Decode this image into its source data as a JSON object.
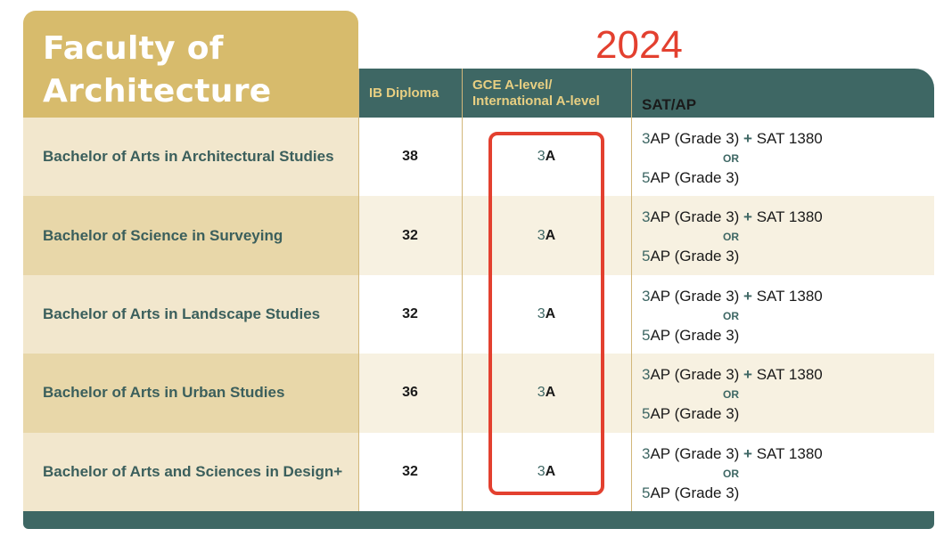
{
  "faculty_title": {
    "line1": "Faculty of",
    "line2": "Architecture"
  },
  "year": "2024",
  "headers": {
    "ib": "IB Diploma",
    "gce_line1": "GCE A-level/",
    "gce_line2": "International A-level",
    "sat": "SAT/AP"
  },
  "rows": [
    {
      "programme": "Bachelor of Arts in Architectural Studies",
      "ib": "38",
      "gce_num": "3",
      "gce_grade": "A",
      "sat": {
        "a_num": "3",
        "a_text": "AP (Grade 3)",
        "plus": "+",
        "sat_text": "SAT 1380",
        "or": "OR",
        "b_num": "5",
        "b_text": "AP (Grade 3)"
      }
    },
    {
      "programme": "Bachelor of Science in Surveying",
      "ib": "32",
      "gce_num": "3",
      "gce_grade": "A",
      "sat": {
        "a_num": "3",
        "a_text": "AP (Grade 3)",
        "plus": "+",
        "sat_text": "SAT 1380",
        "or": "OR",
        "b_num": "5",
        "b_text": "AP (Grade 3)"
      }
    },
    {
      "programme": "Bachelor of Arts in Landscape Studies",
      "ib": "32",
      "gce_num": "3",
      "gce_grade": "A",
      "sat": {
        "a_num": "3",
        "a_text": "AP (Grade 3)",
        "plus": "+",
        "sat_text": "SAT 1380",
        "or": "OR",
        "b_num": "5",
        "b_text": "AP (Grade 3)"
      }
    },
    {
      "programme": "Bachelor of Arts in Urban Studies",
      "ib": "36",
      "gce_num": "3",
      "gce_grade": "A",
      "sat": {
        "a_num": "3",
        "a_text": "AP (Grade 3)",
        "plus": "+",
        "sat_text": "SAT 1380",
        "or": "OR",
        "b_num": "5",
        "b_text": "AP (Grade 3)"
      }
    },
    {
      "programme": "Bachelor of Arts and Sciences in Design+",
      "ib": "32",
      "gce_num": "3",
      "gce_grade": "A",
      "sat": {
        "a_num": "3",
        "a_text": "AP (Grade 3)",
        "plus": "+",
        "sat_text": "SAT 1380",
        "or": "OR",
        "b_num": "5",
        "b_text": "AP (Grade 3)"
      }
    }
  ],
  "colors": {
    "accent_red": "#e3402f",
    "teal": "#3e6764",
    "gold": "#d7bb6c"
  }
}
